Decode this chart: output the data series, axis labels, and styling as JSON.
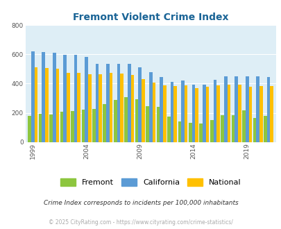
{
  "title": "Fremont Violent Crime Index",
  "years": [
    1999,
    2000,
    2001,
    2002,
    2003,
    2004,
    2005,
    2006,
    2007,
    2008,
    2009,
    2010,
    2011,
    2012,
    2013,
    2014,
    2015,
    2016,
    2017,
    2018,
    2019,
    2020,
    2021
  ],
  "fremont": [
    180,
    195,
    190,
    205,
    210,
    220,
    225,
    260,
    290,
    305,
    295,
    245,
    240,
    175,
    140,
    130,
    125,
    150,
    185,
    185,
    215,
    165,
    180
  ],
  "california": [
    620,
    615,
    610,
    595,
    595,
    585,
    535,
    535,
    535,
    535,
    510,
    480,
    445,
    410,
    420,
    395,
    395,
    425,
    450,
    450,
    450,
    450,
    445
  ],
  "national": [
    510,
    505,
    500,
    475,
    475,
    465,
    465,
    475,
    470,
    460,
    430,
    405,
    390,
    385,
    390,
    370,
    380,
    390,
    395,
    395,
    380,
    385,
    385
  ],
  "fremont_color": "#8dc63f",
  "california_color": "#5b9bd5",
  "national_color": "#ffc000",
  "plot_bg_color": "#deeef6",
  "fig_bg_color": "#ffffff",
  "title_color": "#1a6496",
  "ylabel_max": 800,
  "yticks": [
    0,
    200,
    400,
    600,
    800
  ],
  "xtick_years": [
    1999,
    2004,
    2009,
    2014,
    2019
  ],
  "legend_labels": [
    "Fremont",
    "California",
    "National"
  ],
  "footnote1": "Crime Index corresponds to incidents per 100,000 inhabitants",
  "footnote2": "© 2025 CityRating.com - https://www.cityrating.com/crime-statistics/",
  "footnote1_color": "#333333",
  "footnote2_color": "#aaaaaa",
  "title_fontsize": 10,
  "legend_fontsize": 8,
  "footnote1_fontsize": 6.5,
  "footnote2_fontsize": 5.5
}
